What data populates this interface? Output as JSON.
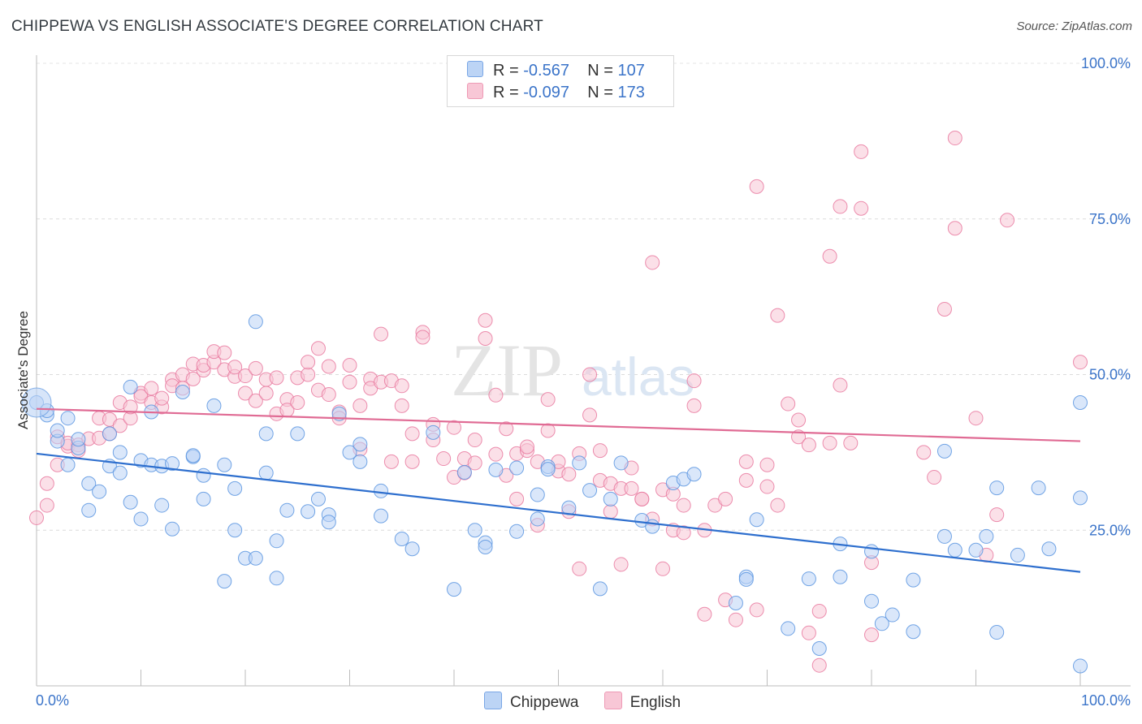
{
  "header": {
    "title": "CHIPPEWA VS ENGLISH ASSOCIATE'S DEGREE CORRELATION CHART",
    "source": "Source: ZipAtlas.com"
  },
  "legend": {
    "rows": [
      {
        "r_label": "R =",
        "r_value": "-0.567",
        "n_label": "N =",
        "n_value": "107"
      },
      {
        "r_label": "R =",
        "r_value": "-0.097",
        "n_label": "N =",
        "n_value": "173"
      }
    ]
  },
  "watermark": {
    "zip": "ZIP",
    "atlas": "atlas"
  },
  "colors": {
    "chippewa": "#5b95e0",
    "chippewa_fill": "#bcd4f5",
    "english": "#e97aa0",
    "english_fill": "#f8c7d6",
    "chippewa_line": "#2e6fce",
    "english_line": "#e06b94",
    "tick_label": "#3b74c9"
  },
  "chart_data": {
    "type": "scatter",
    "title": "CHIPPEWA VS ENGLISH ASSOCIATE'S DEGREE CORRELATION CHART",
    "xlabel": "",
    "ylabel": "Associate's Degree",
    "xlim": [
      0,
      100
    ],
    "ylim": [
      0,
      100
    ],
    "x_tick_labels": [
      "0.0%",
      "100.0%"
    ],
    "y_tick_labels": [
      "25.0%",
      "50.0%",
      "75.0%",
      "100.0%"
    ],
    "y_ticks": [
      25,
      50,
      75,
      100
    ],
    "grid": true,
    "legend_position": "bottom-center",
    "series": [
      {
        "name": "Chippewa",
        "r": -0.567,
        "n": 107,
        "trend": [
          [
            0,
            37.3
          ],
          [
            100,
            18.3
          ]
        ],
        "points": [
          [
            0,
            45.5
          ],
          [
            1,
            43.5
          ],
          [
            1,
            44.2
          ],
          [
            2,
            39.3
          ],
          [
            2,
            41
          ],
          [
            3,
            43
          ],
          [
            3,
            35.5
          ],
          [
            4,
            38.2
          ],
          [
            4,
            39.6
          ],
          [
            5,
            32.5
          ],
          [
            5,
            28.2
          ],
          [
            6,
            31.2
          ],
          [
            7,
            35.3
          ],
          [
            7,
            40.5
          ],
          [
            8,
            37.5
          ],
          [
            8,
            34.2
          ],
          [
            9,
            29.5
          ],
          [
            9,
            48
          ],
          [
            10,
            26.8
          ],
          [
            10,
            36.2
          ],
          [
            11,
            35.5
          ],
          [
            11,
            44
          ],
          [
            12,
            29
          ],
          [
            12,
            35.3
          ],
          [
            13,
            25.2
          ],
          [
            13,
            35.7
          ],
          [
            14,
            47.2
          ],
          [
            15,
            36.8
          ],
          [
            15,
            37
          ],
          [
            16,
            30
          ],
          [
            16,
            33.8
          ],
          [
            17,
            45
          ],
          [
            18,
            35.5
          ],
          [
            18,
            16.8
          ],
          [
            19,
            25
          ],
          [
            19,
            31.7
          ],
          [
            20,
            20.5
          ],
          [
            21,
            20.5
          ],
          [
            21,
            58.5
          ],
          [
            22,
            40.5
          ],
          [
            22,
            34.2
          ],
          [
            23,
            17.3
          ],
          [
            23,
            23.3
          ],
          [
            24,
            28.2
          ],
          [
            25,
            40.5
          ],
          [
            26,
            28
          ],
          [
            27,
            30
          ],
          [
            28,
            27.5
          ],
          [
            28,
            26.3
          ],
          [
            29,
            43.7
          ],
          [
            30,
            37.5
          ],
          [
            31,
            38.8
          ],
          [
            31,
            36
          ],
          [
            33,
            27.3
          ],
          [
            33,
            31.3
          ],
          [
            35,
            23.6
          ],
          [
            36,
            22
          ],
          [
            38,
            40.7
          ],
          [
            40,
            15.5
          ],
          [
            41,
            34.3
          ],
          [
            42,
            25
          ],
          [
            43,
            23
          ],
          [
            43,
            22.3
          ],
          [
            44,
            34.7
          ],
          [
            46,
            24.8
          ],
          [
            46,
            35
          ],
          [
            48,
            30.7
          ],
          [
            48,
            26.8
          ],
          [
            49,
            35.2
          ],
          [
            49,
            34.8
          ],
          [
            51,
            28.6
          ],
          [
            52,
            35.8
          ],
          [
            53,
            31.4
          ],
          [
            54,
            15.6
          ],
          [
            55,
            30
          ],
          [
            56,
            35.8
          ],
          [
            58,
            26.6
          ],
          [
            59,
            25.6
          ],
          [
            61,
            32.6
          ],
          [
            62,
            33.2
          ],
          [
            63,
            34
          ],
          [
            67,
            13.3
          ],
          [
            68,
            17.5
          ],
          [
            68,
            17.1
          ],
          [
            69,
            26.7
          ],
          [
            72,
            9.2
          ],
          [
            74,
            17.2
          ],
          [
            75,
            6
          ],
          [
            77,
            22.8
          ],
          [
            77,
            17.5
          ],
          [
            80,
            21.6
          ],
          [
            80,
            13.6
          ],
          [
            81,
            10
          ],
          [
            82,
            11.4
          ],
          [
            84,
            17
          ],
          [
            84,
            8.7
          ],
          [
            87,
            37.7
          ],
          [
            87,
            24
          ],
          [
            88,
            21.8
          ],
          [
            90,
            21.8
          ],
          [
            91,
            24
          ],
          [
            92,
            8.6
          ],
          [
            92,
            31.8
          ],
          [
            94,
            21
          ],
          [
            96,
            31.8
          ],
          [
            97,
            22
          ],
          [
            100,
            45.5
          ],
          [
            100,
            30.2
          ],
          [
            100,
            3.2
          ]
        ]
      },
      {
        "name": "English",
        "r": -0.097,
        "n": 173,
        "trend": [
          [
            0,
            44.5
          ],
          [
            100,
            39.3
          ]
        ],
        "points": [
          [
            0,
            27
          ],
          [
            1,
            29
          ],
          [
            1,
            32.5
          ],
          [
            2,
            40
          ],
          [
            2,
            35.5
          ],
          [
            3,
            38.5
          ],
          [
            3,
            39
          ],
          [
            4,
            38.7
          ],
          [
            4,
            37.8
          ],
          [
            5,
            39.7
          ],
          [
            6,
            43
          ],
          [
            6,
            39.8
          ],
          [
            7,
            40.5
          ],
          [
            7,
            42.8
          ],
          [
            8,
            45.5
          ],
          [
            8,
            41.8
          ],
          [
            9,
            43
          ],
          [
            9,
            44.8
          ],
          [
            10,
            47
          ],
          [
            10,
            46.5
          ],
          [
            11,
            45.5
          ],
          [
            11,
            47.8
          ],
          [
            12,
            44.8
          ],
          [
            12,
            46.2
          ],
          [
            13,
            49.2
          ],
          [
            13,
            48.2
          ],
          [
            14,
            50
          ],
          [
            14,
            47.8
          ],
          [
            15,
            49.3
          ],
          [
            15,
            51.7
          ],
          [
            16,
            50.7
          ],
          [
            16,
            51.5
          ],
          [
            17,
            52
          ],
          [
            17,
            53.7
          ],
          [
            18,
            50.8
          ],
          [
            18,
            53.5
          ],
          [
            19,
            49.7
          ],
          [
            19,
            51.2
          ],
          [
            20,
            49.8
          ],
          [
            20,
            47
          ],
          [
            21,
            45.8
          ],
          [
            21,
            51
          ],
          [
            22,
            47
          ],
          [
            22,
            49.2
          ],
          [
            23,
            43.7
          ],
          [
            23,
            49.5
          ],
          [
            24,
            46
          ],
          [
            24,
            44.3
          ],
          [
            25,
            49.5
          ],
          [
            25,
            45.5
          ],
          [
            26,
            50
          ],
          [
            26,
            52
          ],
          [
            27,
            54.2
          ],
          [
            27,
            47.5
          ],
          [
            28,
            51.3
          ],
          [
            28,
            46.8
          ],
          [
            29,
            44
          ],
          [
            29,
            43
          ],
          [
            30,
            48.8
          ],
          [
            30,
            51.5
          ],
          [
            31,
            45
          ],
          [
            31,
            38
          ],
          [
            32,
            49.3
          ],
          [
            32,
            47.8
          ],
          [
            33,
            56.5
          ],
          [
            33,
            48.8
          ],
          [
            34,
            49
          ],
          [
            34,
            36
          ],
          [
            35,
            48.2
          ],
          [
            35,
            45
          ],
          [
            36,
            40.5
          ],
          [
            36,
            36
          ],
          [
            37,
            56.8
          ],
          [
            37,
            56
          ],
          [
            38,
            42
          ],
          [
            38,
            39.5
          ],
          [
            39,
            36.5
          ],
          [
            40,
            41.5
          ],
          [
            40,
            33.5
          ],
          [
            41,
            36.5
          ],
          [
            41,
            34.2
          ],
          [
            42,
            39.5
          ],
          [
            42,
            35.8
          ],
          [
            43,
            55.8
          ],
          [
            43,
            58.7
          ],
          [
            44,
            37.2
          ],
          [
            44,
            46.7
          ],
          [
            45,
            41.3
          ],
          [
            45,
            33.8
          ],
          [
            46,
            30
          ],
          [
            46,
            37.3
          ],
          [
            47,
            37.8
          ],
          [
            47,
            38.4
          ],
          [
            48,
            36
          ],
          [
            48,
            25.8
          ],
          [
            49,
            41
          ],
          [
            49,
            46
          ],
          [
            50,
            34.5
          ],
          [
            50,
            36
          ],
          [
            51,
            28
          ],
          [
            51,
            34
          ],
          [
            52,
            37.3
          ],
          [
            52,
            18.8
          ],
          [
            53,
            50
          ],
          [
            53,
            43.5
          ],
          [
            54,
            37.8
          ],
          [
            54,
            33
          ],
          [
            55,
            28
          ],
          [
            55,
            32.5
          ],
          [
            56,
            31.7
          ],
          [
            56,
            19.5
          ],
          [
            57,
            35
          ],
          [
            57,
            31.7
          ],
          [
            58,
            30
          ],
          [
            58,
            30
          ],
          [
            59,
            68
          ],
          [
            59,
            26.8
          ],
          [
            60,
            31.5
          ],
          [
            60,
            18.8
          ],
          [
            61,
            30.8
          ],
          [
            61,
            25
          ],
          [
            62,
            24.6
          ],
          [
            62,
            29
          ],
          [
            63,
            49
          ],
          [
            63,
            45
          ],
          [
            64,
            25
          ],
          [
            64,
            11.5
          ],
          [
            65,
            29
          ],
          [
            66,
            30
          ],
          [
            66,
            13.8
          ],
          [
            67,
            10.6
          ],
          [
            68,
            36
          ],
          [
            68,
            33
          ],
          [
            69,
            80.2
          ],
          [
            69,
            12.2
          ],
          [
            70,
            32
          ],
          [
            70,
            35.5
          ],
          [
            71,
            29
          ],
          [
            71,
            59.5
          ],
          [
            72,
            45.3
          ],
          [
            73,
            42.7
          ],
          [
            73,
            40
          ],
          [
            74,
            38.7
          ],
          [
            74,
            8.5
          ],
          [
            75,
            3.3
          ],
          [
            75,
            12
          ],
          [
            76,
            39
          ],
          [
            76,
            69
          ],
          [
            77,
            77
          ],
          [
            77,
            48.3
          ],
          [
            78,
            39
          ],
          [
            79,
            85.8
          ],
          [
            79,
            76.7
          ],
          [
            80,
            19.8
          ],
          [
            80,
            8.2
          ],
          [
            85,
            37.5
          ],
          [
            86,
            33.5
          ],
          [
            87,
            60.5
          ],
          [
            88,
            73.5
          ],
          [
            88,
            88
          ],
          [
            90,
            43
          ],
          [
            91,
            21
          ],
          [
            92,
            27.5
          ],
          [
            93,
            74.8
          ],
          [
            100,
            52
          ]
        ]
      }
    ]
  },
  "axes": {
    "x_min_label": "0.0%",
    "x_max_label": "100.0%",
    "y_label": "Associate's Degree"
  },
  "bottom_legend": {
    "items": [
      {
        "label": "Chippewa"
      },
      {
        "label": "English"
      }
    ]
  }
}
